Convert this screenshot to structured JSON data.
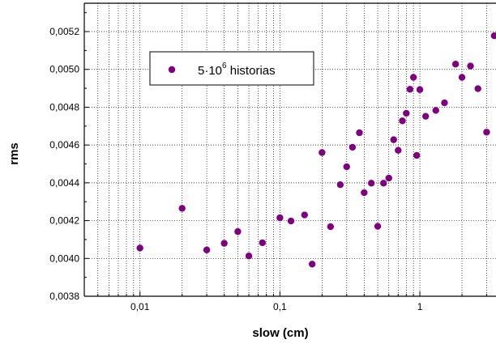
{
  "chart_data": {
    "type": "scatter",
    "x_scale": "log",
    "xlim": [
      0.004,
      3.5
    ],
    "ylim": [
      0.0038,
      0.00535
    ],
    "xlabel": "slow (cm)",
    "ylabel": "rms",
    "grid": true,
    "legend_position": "top-left",
    "x_ticks": [
      {
        "value": 0.01,
        "label": "0,01"
      },
      {
        "value": 0.1,
        "label": "0,1"
      },
      {
        "value": 1,
        "label": "1"
      }
    ],
    "y_ticks": [
      {
        "value": 0.0038,
        "label": "0,0038"
      },
      {
        "value": 0.004,
        "label": "0,0040"
      },
      {
        "value": 0.0042,
        "label": "0,0042"
      },
      {
        "value": 0.0044,
        "label": "0,0044"
      },
      {
        "value": 0.0046,
        "label": "0,0046"
      },
      {
        "value": 0.0048,
        "label": "0,0048"
      },
      {
        "value": 0.005,
        "label": "0,0050"
      },
      {
        "value": 0.0052,
        "label": "0,0052"
      }
    ],
    "series": [
      {
        "legend_base": "5·10",
        "legend_exponent": "6",
        "legend_rest": " historias",
        "color": "#800080",
        "points": [
          {
            "x": 0.01,
            "y": 0.004055
          },
          {
            "x": 0.02,
            "y": 0.004265
          },
          {
            "x": 0.03,
            "y": 0.004045
          },
          {
            "x": 0.04,
            "y": 0.00408
          },
          {
            "x": 0.05,
            "y": 0.004142
          },
          {
            "x": 0.06,
            "y": 0.004013
          },
          {
            "x": 0.075,
            "y": 0.004083
          },
          {
            "x": 0.1,
            "y": 0.004215
          },
          {
            "x": 0.12,
            "y": 0.004198
          },
          {
            "x": 0.15,
            "y": 0.00423
          },
          {
            "x": 0.17,
            "y": 0.00397
          },
          {
            "x": 0.2,
            "y": 0.00456
          },
          {
            "x": 0.23,
            "y": 0.004168
          },
          {
            "x": 0.27,
            "y": 0.00439
          },
          {
            "x": 0.3,
            "y": 0.004485
          },
          {
            "x": 0.33,
            "y": 0.004588
          },
          {
            "x": 0.37,
            "y": 0.004665
          },
          {
            "x": 0.4,
            "y": 0.004348
          },
          {
            "x": 0.45,
            "y": 0.004398
          },
          {
            "x": 0.5,
            "y": 0.00417
          },
          {
            "x": 0.55,
            "y": 0.004398
          },
          {
            "x": 0.6,
            "y": 0.004425
          },
          {
            "x": 0.65,
            "y": 0.004628
          },
          {
            "x": 0.7,
            "y": 0.004572
          },
          {
            "x": 0.75,
            "y": 0.004728
          },
          {
            "x": 0.8,
            "y": 0.004768
          },
          {
            "x": 0.85,
            "y": 0.004895
          },
          {
            "x": 0.9,
            "y": 0.004958
          },
          {
            "x": 0.95,
            "y": 0.004545
          },
          {
            "x": 1.0,
            "y": 0.004893
          },
          {
            "x": 1.1,
            "y": 0.004752
          },
          {
            "x": 1.3,
            "y": 0.004783
          },
          {
            "x": 1.5,
            "y": 0.004823
          },
          {
            "x": 1.8,
            "y": 0.005028
          },
          {
            "x": 2.0,
            "y": 0.004958
          },
          {
            "x": 2.3,
            "y": 0.005018
          },
          {
            "x": 2.6,
            "y": 0.004898
          },
          {
            "x": 3.0,
            "y": 0.004668
          },
          {
            "x": 3.4,
            "y": 0.005178
          }
        ]
      }
    ]
  }
}
